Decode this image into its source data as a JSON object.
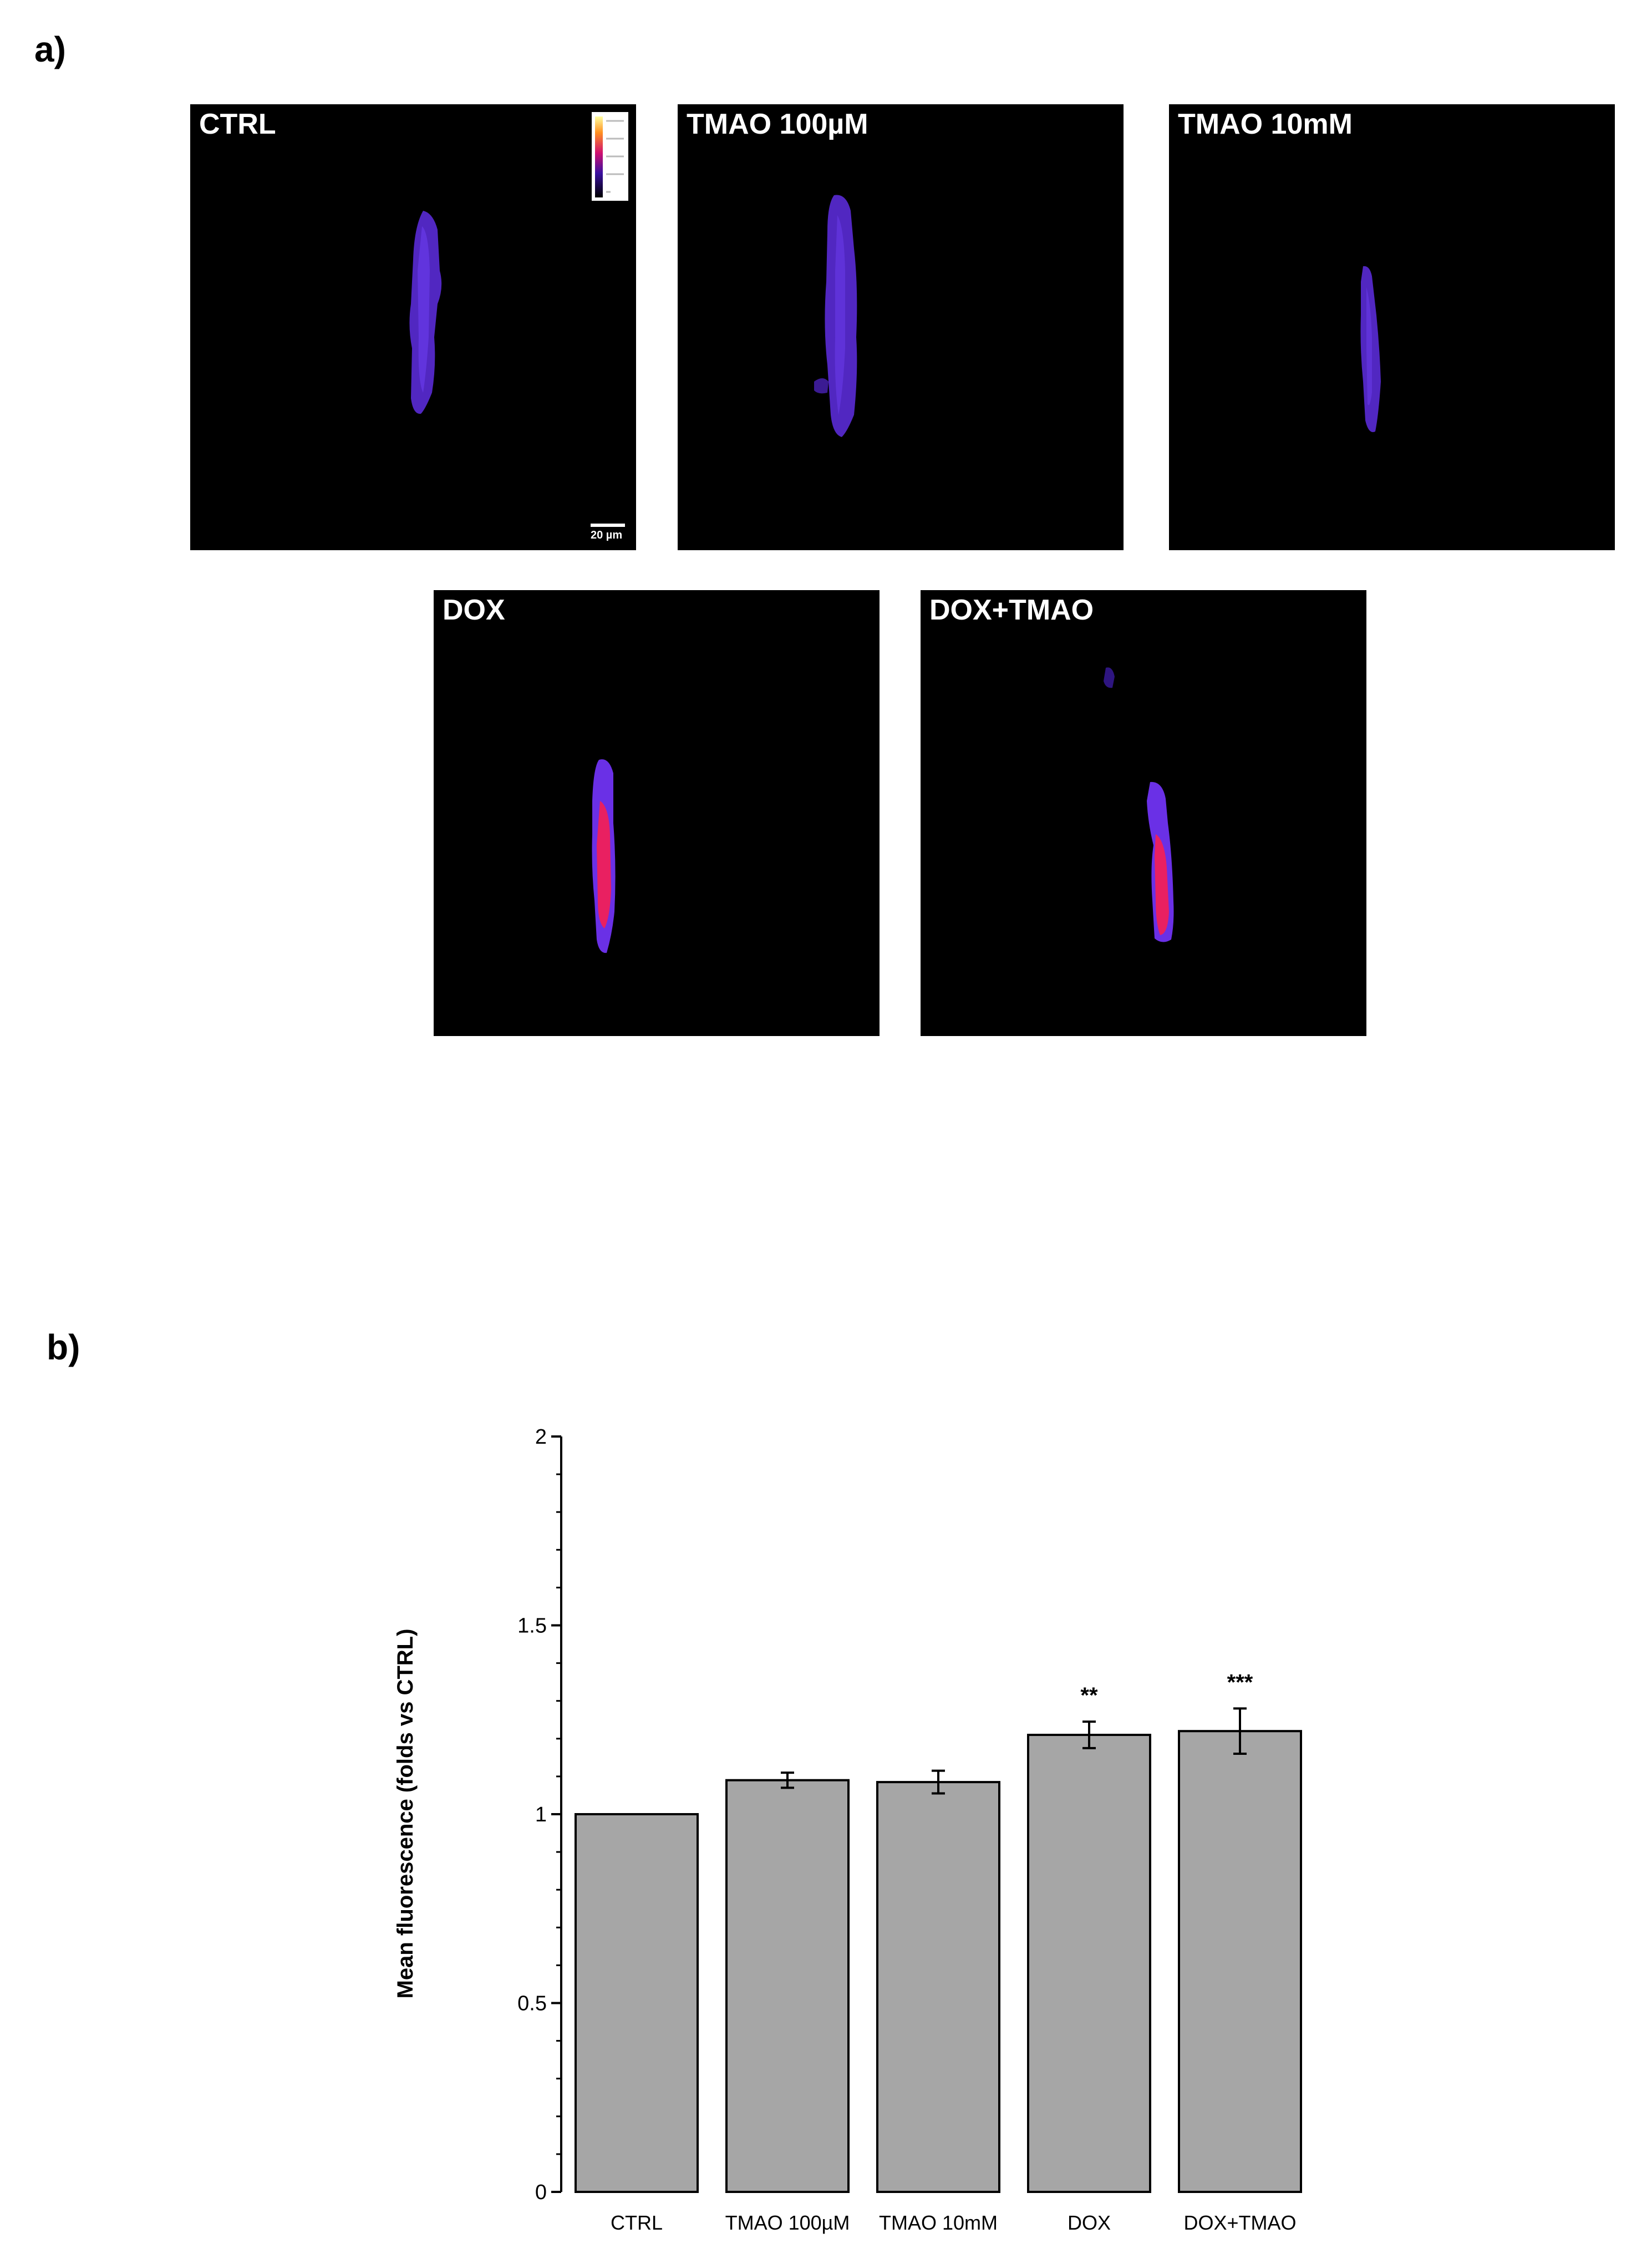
{
  "panels": {
    "a_label": "a)",
    "b_label": "b)"
  },
  "micrographs": [
    {
      "label": "CTRL",
      "scale_bar": "20 µm"
    },
    {
      "label": "TMAO 100µM"
    },
    {
      "label": "TMAO 10mM"
    },
    {
      "label": "DOX"
    },
    {
      "label": "DOX+TMAO"
    }
  ],
  "colors": {
    "bar_fill": "#a6a6a6",
    "bar_stroke": "#000000",
    "cell_low": "#5a2bd6",
    "cell_high": "#f0205a"
  },
  "chart_data": {
    "type": "bar",
    "categories": [
      "CTRL",
      "TMAO 100µM",
      "TMAO 10mM",
      "DOX",
      "DOX+TMAO"
    ],
    "values": [
      1.0,
      1.09,
      1.085,
      1.21,
      1.22
    ],
    "errors": [
      0.0,
      0.02,
      0.03,
      0.035,
      0.06
    ],
    "annotations": [
      "",
      "",
      "",
      "**",
      "***"
    ],
    "ylabel": "Mean fluorescence (folds vs CTRL)",
    "xlabel": "",
    "ylim": [
      0,
      2
    ],
    "yticks": [
      0,
      0.5,
      1,
      1.5,
      2
    ],
    "ytick_labels": [
      "0",
      "0.5",
      "1",
      "1.5",
      "2"
    ],
    "grid": false,
    "legend": "none"
  }
}
